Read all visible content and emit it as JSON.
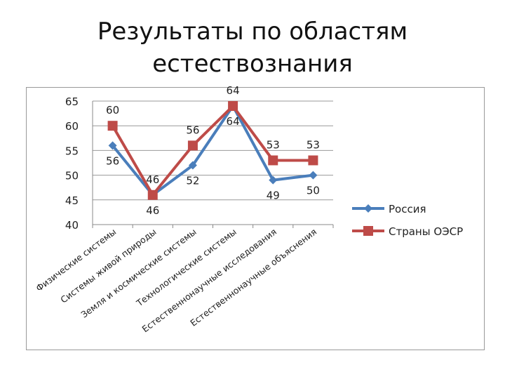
{
  "title_line1": "Результаты по областям",
  "title_line2": "естествознания",
  "chart_data": {
    "type": "line",
    "title": "Результаты по областям естествознания",
    "categories": [
      "Физические системы",
      "Системы живой природы",
      "Земля и космические системы",
      "Технологические системы",
      "Естественнонаучные исследования",
      "Естественнонаучные объяснения"
    ],
    "series": [
      {
        "name": "Россия",
        "values": [
          56,
          46,
          52,
          64,
          49,
          50
        ],
        "color": "#4a7ebb",
        "marker": "diamond",
        "label_pos": "below"
      },
      {
        "name": "Страны ОЭСР",
        "values": [
          60,
          46,
          56,
          64,
          53,
          53
        ],
        "color": "#be4b48",
        "marker": "square",
        "label_pos": "above"
      }
    ],
    "ylim": [
      40,
      65
    ],
    "yticks": [
      40,
      45,
      50,
      55,
      60,
      65
    ],
    "grid": true,
    "legend": "right",
    "xlabel": "",
    "ylabel": ""
  }
}
